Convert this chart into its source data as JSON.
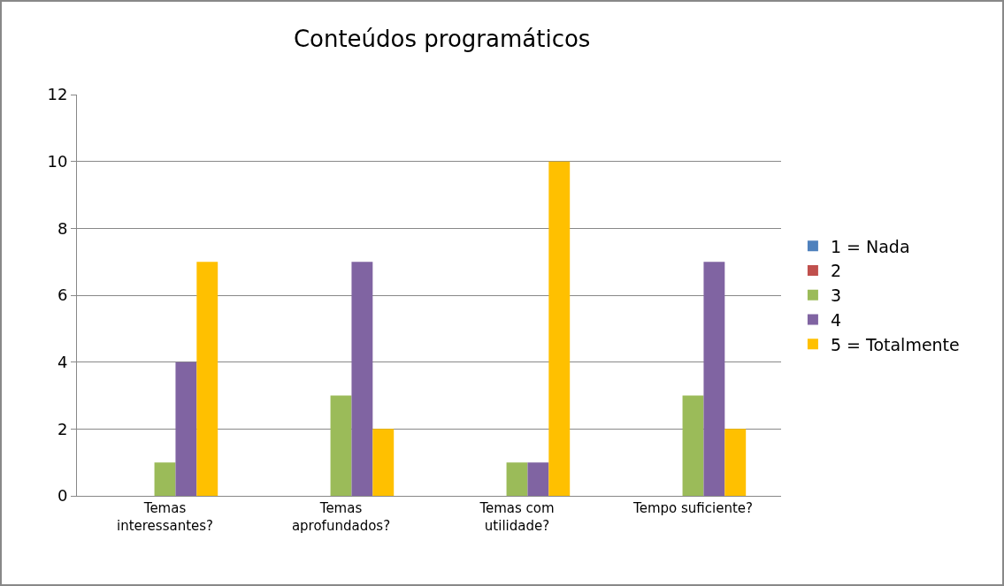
{
  "chart_data": {
    "type": "bar",
    "title": "Conteúdos programáticos",
    "categories": [
      "Temas interessantes?",
      "Temas aprofundados?",
      "Temas com utilidade?",
      "Tempo suficiente?"
    ],
    "series": [
      {
        "name": "1 = Nada",
        "color": "#4f81bd",
        "values": [
          0,
          0,
          0,
          0
        ]
      },
      {
        "name": "2",
        "color": "#c0504d",
        "values": [
          0,
          0,
          0,
          0
        ]
      },
      {
        "name": "3",
        "color": "#9bbb59",
        "values": [
          1,
          3,
          1,
          3
        ]
      },
      {
        "name": "4",
        "color": "#8064a2",
        "values": [
          4,
          7,
          1,
          7
        ]
      },
      {
        "name": "5 = Totalmente",
        "color": "#ffc000",
        "values": [
          7,
          2,
          10,
          2
        ]
      }
    ],
    "ylim": [
      0,
      12
    ],
    "yticks": [
      0,
      2,
      4,
      6,
      8,
      10,
      12
    ],
    "grid": "y",
    "legend": "right"
  }
}
